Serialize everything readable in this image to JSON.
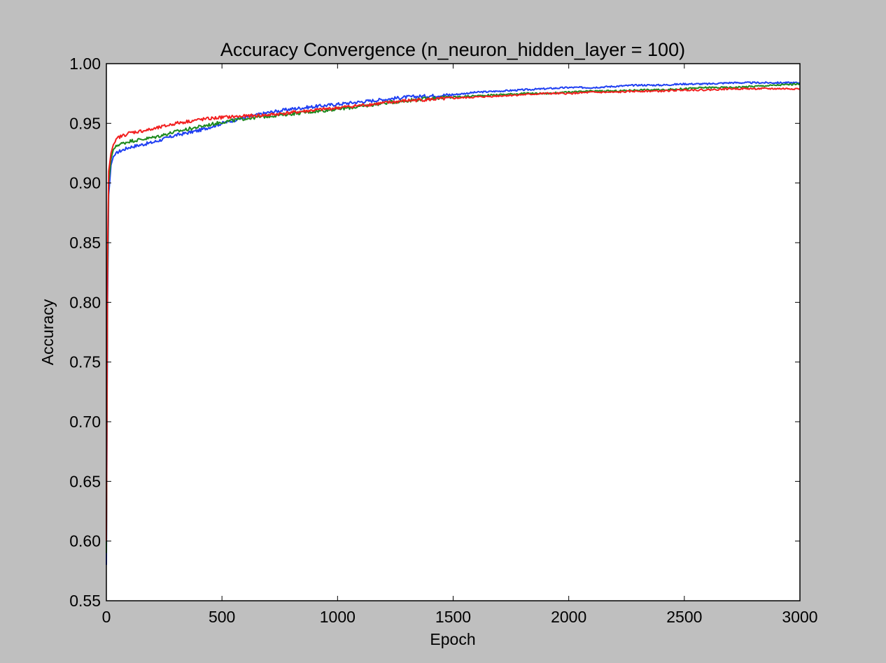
{
  "chart_data": {
    "type": "line",
    "title": "Accuracy Convergence (n_neuron_hidden_layer = 100)",
    "xlabel": "Epoch",
    "ylabel": "Accuracy",
    "xlim": [
      0,
      3000
    ],
    "ylim": [
      0.55,
      1.0
    ],
    "xticks": [
      0,
      500,
      1000,
      1500,
      2000,
      2500,
      3000
    ],
    "yticks": [
      0.55,
      0.6,
      0.65,
      0.7,
      0.75,
      0.8,
      0.85,
      0.9,
      0.95,
      1.0
    ],
    "xtick_labels": [
      "0",
      "500",
      "1000",
      "1500",
      "2000",
      "2500",
      "3000"
    ],
    "ytick_labels": [
      "0.55",
      "0.60",
      "0.65",
      "0.70",
      "0.75",
      "0.80",
      "0.85",
      "0.90",
      "0.95",
      "1.00"
    ],
    "grid": false,
    "legend": "none",
    "series": [
      {
        "color": "#1f3ff2",
        "x": [
          0,
          5,
          10,
          20,
          30,
          50,
          100,
          200,
          300,
          400,
          500,
          600,
          700,
          800,
          900,
          1000,
          1100,
          1200,
          1300,
          1400,
          1500,
          1600,
          1700,
          1800,
          1900,
          2000,
          2100,
          2200,
          2300,
          2400,
          2500,
          2600,
          2700,
          2800,
          2900,
          3000
        ],
        "y": [
          0.58,
          0.8,
          0.89,
          0.915,
          0.922,
          0.926,
          0.93,
          0.934,
          0.94,
          0.944,
          0.95,
          0.955,
          0.959,
          0.962,
          0.964,
          0.966,
          0.968,
          0.97,
          0.972,
          0.973,
          0.974,
          0.976,
          0.977,
          0.978,
          0.979,
          0.98,
          0.98,
          0.981,
          0.982,
          0.982,
          0.983,
          0.983,
          0.984,
          0.984,
          0.984,
          0.984
        ]
      },
      {
        "color": "#1e8a1e",
        "x": [
          0,
          5,
          10,
          20,
          30,
          50,
          100,
          200,
          300,
          400,
          500,
          600,
          700,
          800,
          900,
          1000,
          1100,
          1200,
          1300,
          1400,
          1500,
          1600,
          1700,
          1800,
          1900,
          2000,
          2100,
          2200,
          2300,
          2400,
          2500,
          2600,
          2700,
          2800,
          2900,
          3000
        ],
        "y": [
          0.59,
          0.82,
          0.9,
          0.92,
          0.928,
          0.932,
          0.935,
          0.938,
          0.943,
          0.947,
          0.951,
          0.954,
          0.956,
          0.958,
          0.96,
          0.962,
          0.964,
          0.967,
          0.969,
          0.971,
          0.972,
          0.973,
          0.974,
          0.975,
          0.975,
          0.976,
          0.977,
          0.977,
          0.978,
          0.978,
          0.979,
          0.98,
          0.98,
          0.981,
          0.982,
          0.983
        ]
      },
      {
        "color": "#f21f1f",
        "x": [
          0,
          5,
          10,
          20,
          30,
          50,
          100,
          200,
          300,
          400,
          500,
          600,
          700,
          800,
          900,
          1000,
          1100,
          1200,
          1300,
          1400,
          1500,
          1600,
          1700,
          1800,
          1900,
          2000,
          2100,
          2200,
          2300,
          2400,
          2500,
          2600,
          2700,
          2800,
          2900,
          3000
        ],
        "y": [
          0.6,
          0.84,
          0.91,
          0.925,
          0.932,
          0.938,
          0.942,
          0.945,
          0.95,
          0.953,
          0.955,
          0.956,
          0.957,
          0.959,
          0.961,
          0.963,
          0.965,
          0.967,
          0.969,
          0.97,
          0.971,
          0.972,
          0.973,
          0.974,
          0.975,
          0.975,
          0.976,
          0.976,
          0.977,
          0.977,
          0.978,
          0.978,
          0.979,
          0.979,
          0.979,
          0.979
        ]
      }
    ]
  }
}
